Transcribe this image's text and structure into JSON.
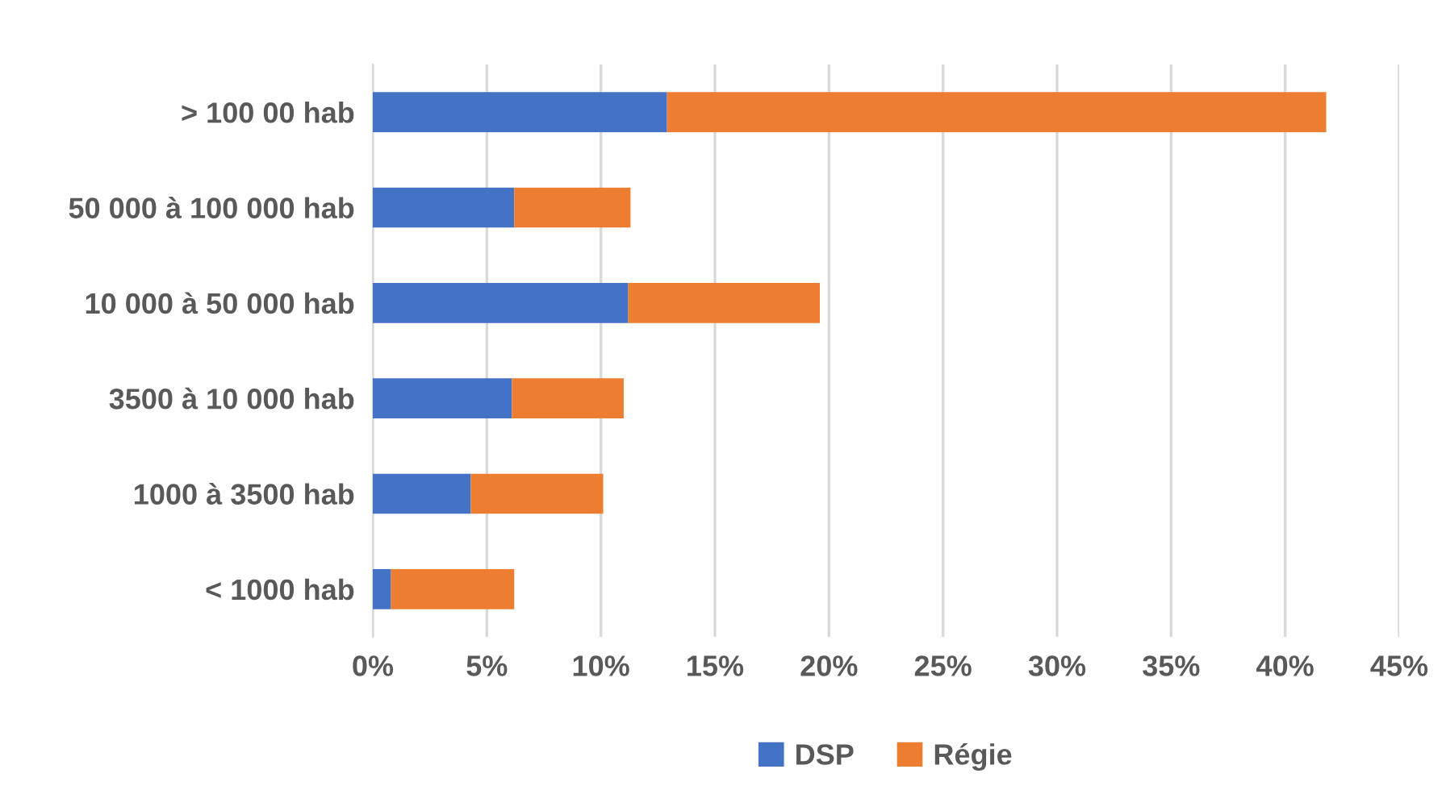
{
  "chart_data": {
    "type": "bar",
    "orientation": "horizontal",
    "stacked": true,
    "categories": [
      "> 100 00 hab",
      "50 000 à 100 000 hab",
      "10 000 à 50 000 hab",
      "3500 à 10 000 hab",
      "1000 à 3500 hab",
      "< 1000 hab"
    ],
    "series": [
      {
        "name": "DSP",
        "color": "#4472c4",
        "values": [
          12.9,
          6.2,
          11.2,
          6.1,
          4.3,
          0.8
        ]
      },
      {
        "name": "Régie",
        "color": "#ed7d31",
        "values": [
          28.9,
          5.1,
          8.4,
          4.9,
          5.8,
          5.4
        ]
      }
    ],
    "xlim": [
      0,
      45
    ],
    "xticks": [
      {
        "value": 0,
        "label": "0%"
      },
      {
        "value": 5,
        "label": "5%"
      },
      {
        "value": 10,
        "label": "10%"
      },
      {
        "value": 15,
        "label": "15%"
      },
      {
        "value": 20,
        "label": "20%"
      },
      {
        "value": 25,
        "label": "25%"
      },
      {
        "value": 30,
        "label": "30%"
      },
      {
        "value": 35,
        "label": "35%"
      },
      {
        "value": 40,
        "label": "40%"
      },
      {
        "value": 45,
        "label": "45%"
      }
    ],
    "grid": "x",
    "legend": "bottom"
  }
}
